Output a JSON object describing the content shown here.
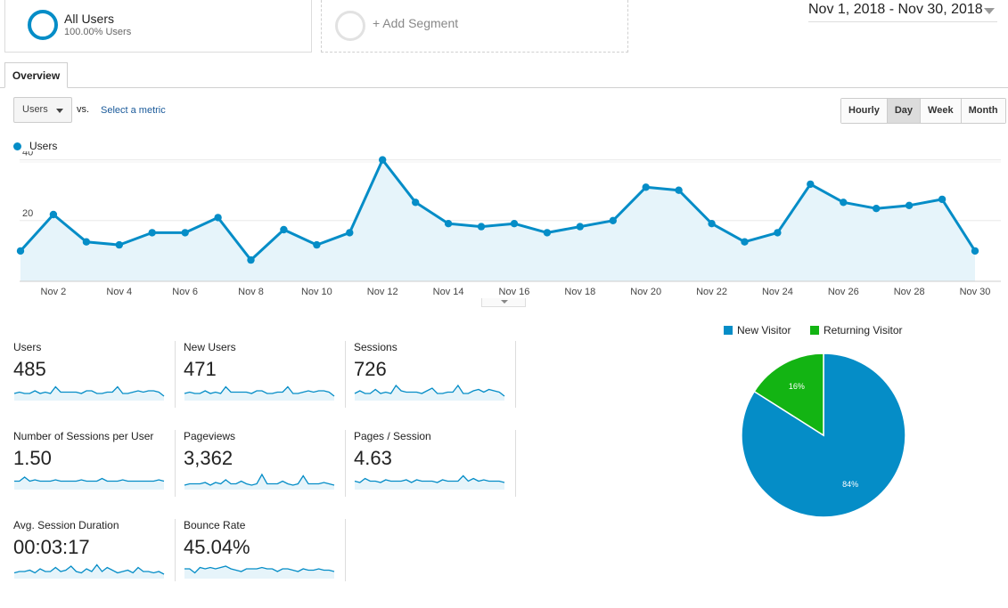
{
  "segments": {
    "all_users": {
      "title": "All Users",
      "subtitle": "100.00% Users"
    },
    "add_segment": "+ Add Segment"
  },
  "date_range": "Nov 1, 2018 - Nov 30, 2018",
  "tabs": [
    {
      "label": "Overview"
    }
  ],
  "metric_selector": {
    "selected": "Users",
    "vs_label": "vs.",
    "select_metric": "Select a metric"
  },
  "time_buttons": [
    {
      "label": "Hourly",
      "active": false
    },
    {
      "label": "Day",
      "active": true
    },
    {
      "label": "Week",
      "active": false
    },
    {
      "label": "Month",
      "active": false
    }
  ],
  "colors": {
    "accent": "#058dc7",
    "returning": "#13b413",
    "fill": "#e6f4fa"
  },
  "chart_data": [
    {
      "type": "area",
      "series": [
        {
          "name": "Users",
          "values": [
            10,
            22,
            13,
            12,
            16,
            16,
            21,
            7,
            17,
            12,
            16,
            40,
            26,
            19,
            18,
            19,
            16,
            18,
            20,
            31,
            30,
            19,
            13,
            16,
            32,
            26,
            24,
            25,
            27,
            10
          ]
        }
      ],
      "x": [
        "Nov 1",
        "Nov 2",
        "Nov 3",
        "Nov 4",
        "Nov 5",
        "Nov 6",
        "Nov 7",
        "Nov 8",
        "Nov 9",
        "Nov 10",
        "Nov 11",
        "Nov 12",
        "Nov 13",
        "Nov 14",
        "Nov 15",
        "Nov 16",
        "Nov 17",
        "Nov 18",
        "Nov 19",
        "Nov 20",
        "Nov 21",
        "Nov 22",
        "Nov 23",
        "Nov 24",
        "Nov 25",
        "Nov 26",
        "Nov 27",
        "Nov 28",
        "Nov 29",
        "Nov 30"
      ],
      "x_tick_labels": [
        "Nov 2",
        "Nov 4",
        "Nov 6",
        "Nov 8",
        "Nov 10",
        "Nov 12",
        "Nov 14",
        "Nov 16",
        "Nov 18",
        "Nov 20",
        "Nov 22",
        "Nov 24",
        "Nov 26",
        "Nov 28",
        "Nov 30"
      ],
      "y_ticks": [
        "20",
        "40"
      ],
      "ylim": [
        0,
        44
      ],
      "grid": true,
      "legend": "top-left"
    },
    {
      "type": "pie",
      "categories": [
        "New Visitor",
        "Returning Visitor"
      ],
      "values": [
        84,
        16
      ],
      "labels": [
        "84%",
        "16%"
      ],
      "colors": [
        "#058dc7",
        "#13b413"
      ],
      "legend": "top"
    }
  ],
  "metrics": [
    {
      "label": "Users",
      "value": "485",
      "spark": [
        4,
        5,
        4,
        4,
        6,
        4,
        5,
        4,
        9,
        5,
        5,
        5,
        5,
        4,
        6,
        6,
        4,
        4,
        5,
        5,
        9,
        4,
        4,
        5,
        6,
        5,
        6,
        6,
        5,
        2
      ]
    },
    {
      "label": "New Users",
      "value": "471",
      "spark": [
        4,
        5,
        4,
        4,
        6,
        4,
        5,
        4,
        9,
        5,
        5,
        5,
        5,
        4,
        6,
        6,
        4,
        4,
        5,
        5,
        9,
        4,
        4,
        5,
        6,
        5,
        6,
        6,
        5,
        2
      ]
    },
    {
      "label": "Sessions",
      "value": "726",
      "spark": [
        4,
        6,
        4,
        4,
        7,
        4,
        5,
        4,
        10,
        6,
        5,
        5,
        5,
        4,
        6,
        8,
        4,
        4,
        5,
        5,
        10,
        4,
        4,
        6,
        7,
        5,
        7,
        6,
        5,
        2
      ]
    },
    {
      "label": "Number of Sessions per User",
      "value": "1.50",
      "spark": [
        5,
        5,
        8,
        5,
        6,
        5,
        5,
        5,
        6,
        5,
        5,
        5,
        5,
        6,
        5,
        5,
        5,
        7,
        5,
        5,
        5,
        6,
        5,
        5,
        5,
        5,
        5,
        5,
        6,
        5
      ]
    },
    {
      "label": "Pageviews",
      "value": "3,362",
      "spark": [
        2,
        3,
        3,
        3,
        4,
        2,
        4,
        3,
        6,
        3,
        3,
        5,
        3,
        2,
        3,
        10,
        3,
        3,
        3,
        5,
        3,
        2,
        3,
        9,
        3,
        3,
        3,
        4,
        3,
        2
      ]
    },
    {
      "label": "Pages / Session",
      "value": "4.63",
      "spark": [
        5,
        4,
        7,
        5,
        5,
        4,
        6,
        5,
        5,
        5,
        6,
        4,
        6,
        5,
        5,
        5,
        4,
        6,
        5,
        5,
        5,
        9,
        5,
        7,
        5,
        6,
        5,
        5,
        5,
        4
      ]
    },
    {
      "label": "Avg. Session Duration",
      "value": "00:03:17",
      "spark": [
        3,
        4,
        4,
        5,
        3,
        6,
        4,
        4,
        7,
        4,
        5,
        8,
        4,
        3,
        6,
        4,
        9,
        4,
        7,
        5,
        3,
        4,
        5,
        3,
        7,
        4,
        4,
        3,
        4,
        2
      ]
    },
    {
      "label": "Bounce Rate",
      "value": "45.04%",
      "spark": [
        6,
        6,
        3,
        7,
        6,
        7,
        6,
        7,
        8,
        6,
        5,
        4,
        6,
        6,
        6,
        7,
        6,
        6,
        4,
        6,
        6,
        5,
        4,
        6,
        5,
        5,
        6,
        5,
        5,
        4
      ]
    }
  ]
}
